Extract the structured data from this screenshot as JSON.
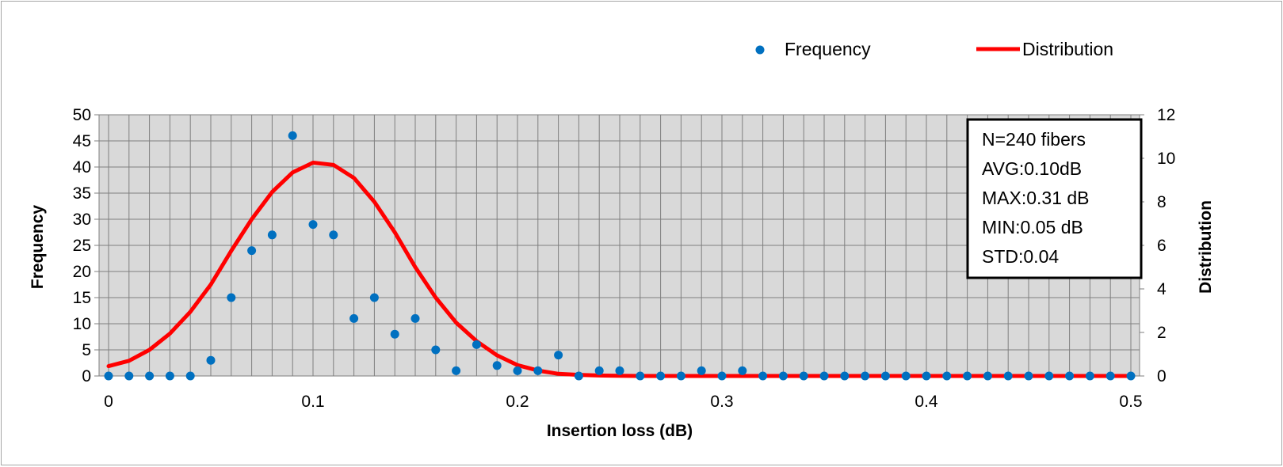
{
  "chart_data": {
    "type": "scatter",
    "xlabel": "Insertion loss (dB)",
    "ylabel": "Frequency",
    "y2label": "Distribution",
    "xlim": [
      0,
      0.5
    ],
    "ylim": [
      0,
      50
    ],
    "y2lim": [
      0,
      12
    ],
    "x_ticks": [
      "0",
      "0.1",
      "0.2",
      "0.3",
      "0.4",
      "0.5"
    ],
    "y_ticks": [
      "0",
      "5",
      "10",
      "15",
      "20",
      "25",
      "30",
      "35",
      "40",
      "45",
      "50"
    ],
    "y2_ticks": [
      "0",
      "2",
      "4",
      "6",
      "8",
      "10",
      "12"
    ],
    "grid": true,
    "legend_position": "top-right",
    "series": [
      {
        "name": "Frequency",
        "kind": "scatter",
        "axis": "left",
        "color": "#0070c0",
        "x": [
          0,
          0.01,
          0.02,
          0.03,
          0.04,
          0.05,
          0.06,
          0.07,
          0.08,
          0.09,
          0.1,
          0.11,
          0.12,
          0.13,
          0.14,
          0.15,
          0.16,
          0.17,
          0.18,
          0.19,
          0.2,
          0.21,
          0.22,
          0.23,
          0.24,
          0.25,
          0.26,
          0.27,
          0.28,
          0.29,
          0.3,
          0.31,
          0.32,
          0.33,
          0.34,
          0.35,
          0.36,
          0.37,
          0.38,
          0.39,
          0.4,
          0.41,
          0.42,
          0.43,
          0.44,
          0.45,
          0.46,
          0.47,
          0.48,
          0.49,
          0.5
        ],
        "y": [
          0,
          0,
          0,
          0,
          0,
          3,
          15,
          24,
          27,
          46,
          29,
          27,
          11,
          15,
          8,
          11,
          5,
          1,
          6,
          2,
          1,
          1,
          4,
          0,
          1,
          1,
          0,
          0,
          0,
          1,
          0,
          1,
          0,
          0,
          0,
          0,
          0,
          0,
          0,
          0,
          0,
          0,
          0,
          0,
          0,
          0,
          0,
          0,
          0,
          0,
          0
        ]
      },
      {
        "name": "Distribution",
        "kind": "line",
        "axis": "right",
        "color": "#ff0000",
        "x": [
          0,
          0.01,
          0.02,
          0.03,
          0.04,
          0.05,
          0.06,
          0.07,
          0.08,
          0.09,
          0.1,
          0.11,
          0.12,
          0.13,
          0.14,
          0.15,
          0.16,
          0.17,
          0.18,
          0.19,
          0.2,
          0.21,
          0.22,
          0.23,
          0.24,
          0.25,
          0.26,
          0.27,
          0.28,
          0.29,
          0.3,
          0.31,
          0.32,
          0.33,
          0.34,
          0.35,
          0.36,
          0.37,
          0.38,
          0.39,
          0.4,
          0.41,
          0.42,
          0.43,
          0.44,
          0.45,
          0.46,
          0.47,
          0.48,
          0.49,
          0.5
        ],
        "y": [
          0.45,
          0.7,
          1.2,
          1.95,
          2.95,
          4.2,
          5.75,
          7.2,
          8.45,
          9.35,
          9.8,
          9.7,
          9.1,
          8.0,
          6.6,
          5.0,
          3.6,
          2.45,
          1.6,
          0.95,
          0.5,
          0.25,
          0.1,
          0.05,
          0.02,
          0.01,
          0,
          0,
          0,
          0,
          0,
          0,
          0,
          0,
          0,
          0,
          0,
          0,
          0,
          0,
          0,
          0,
          0,
          0,
          0,
          0,
          0,
          0,
          0,
          0,
          0
        ]
      }
    ],
    "annotations": [
      "N=240 fibers",
      "AVG:0.10dB",
      "MAX:0.31  dB",
      "MIN:0.05  dB",
      "STD:0.04"
    ]
  }
}
